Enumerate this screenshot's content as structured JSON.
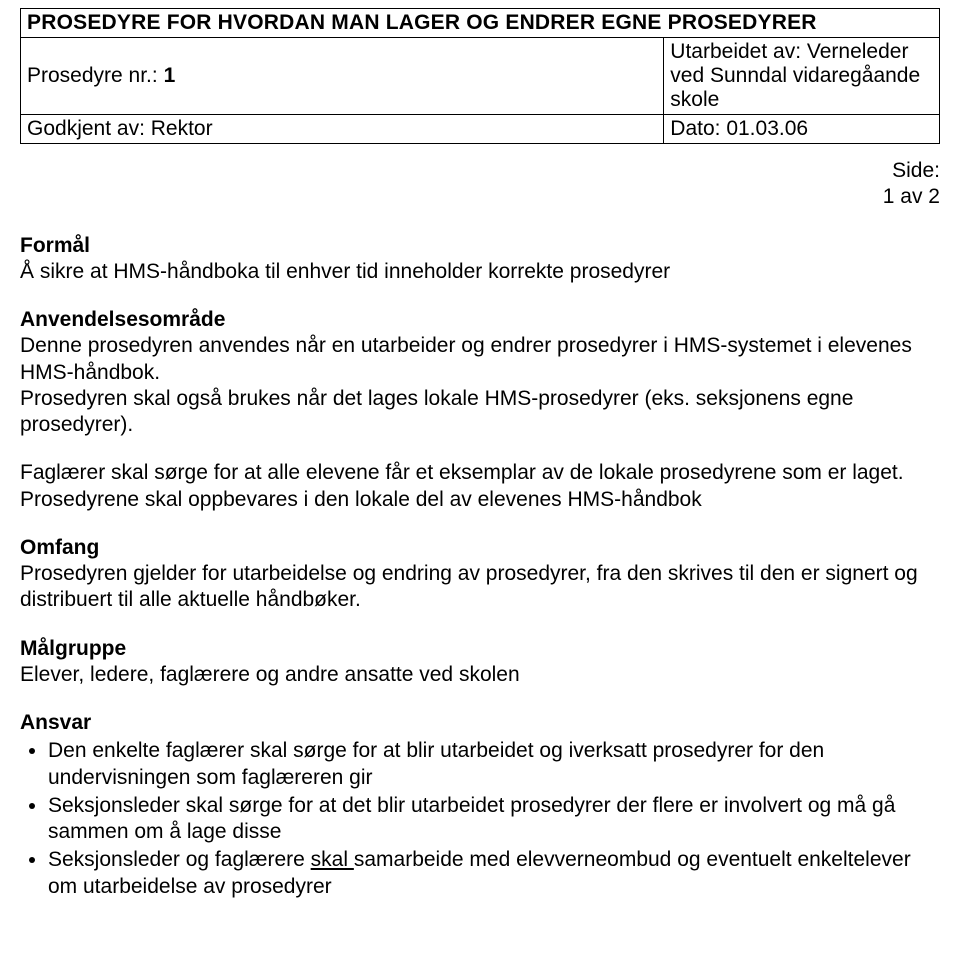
{
  "header": {
    "title": "PROSEDYRE FOR HVORDAN MAN LAGER OG ENDRER EGNE  PROSEDYRER",
    "proc_label": "Prosedyre nr.: ",
    "proc_number": "1",
    "author_line": "Utarbeidet av: Verneleder ved Sunndal vidaregåande skole",
    "approved_by": "Godkjent av: Rektor",
    "date_line": "Dato: 01.03.06"
  },
  "side": {
    "label": "Side:",
    "value": "1 av 2"
  },
  "sections": {
    "formal_heading": "Formål",
    "formal_text": "Å sikre at HMS-håndboka til enhver tid inneholder korrekte prosedyrer",
    "anvend_heading": "Anvendelsesområde",
    "anvend_p1": "Denne prosedyren anvendes når en utarbeider og endrer prosedyrer i HMS-systemet i elevenes HMS-håndbok.",
    "anvend_p2": "Prosedyren skal også brukes når det lages lokale HMS-prosedyrer (eks. seksjonens egne prosedyrer).",
    "anvend_p3": "Faglærer skal sørge for at alle elevene får et eksemplar av de lokale prosedyrene som er laget. Prosedyrene skal oppbevares i den lokale del av elevenes HMS-håndbok",
    "omfang_heading": "Omfang",
    "omfang_text": "Prosedyren gjelder for utarbeidelse og endring av prosedyrer, fra den skrives til den er signert og distribuert til alle aktuelle håndbøker.",
    "malgruppe_heading": "Målgruppe",
    "malgruppe_text": "Elever, ledere, faglærere og andre ansatte ved skolen",
    "ansvar_heading": "Ansvar",
    "bullets": {
      "b1": "Den enkelte faglærer skal sørge for at blir utarbeidet og iverksatt prosedyrer for den undervisningen som faglæreren gir",
      "b2": "Seksjonsleder skal sørge for at det blir utarbeidet prosedyrer der flere er involvert og må gå sammen om å lage disse",
      "b3_pre": "Seksjonsleder og faglærere ",
      "b3_underlined": " skal ",
      "b3_post": "samarbeide med elevverneombud og eventuelt enkeltelever om utarbeidelse av prosedyrer"
    }
  }
}
